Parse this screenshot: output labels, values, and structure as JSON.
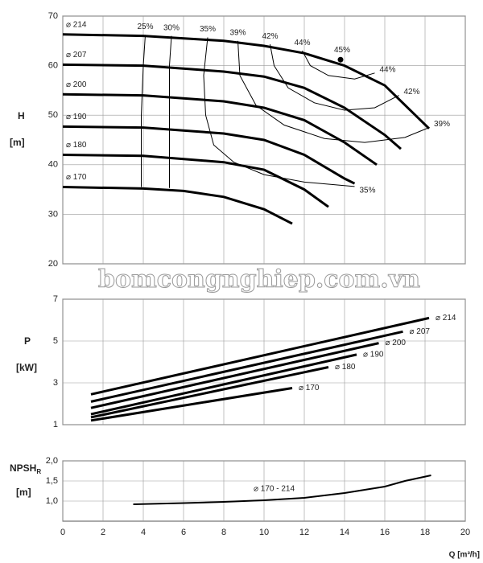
{
  "chart_data": [
    {
      "type": "line",
      "y_label": "H",
      "y_unit": "[m]",
      "xlim": [
        0,
        20
      ],
      "ylim": [
        20,
        70
      ],
      "yticks": [
        20,
        30,
        40,
        50,
        60,
        70
      ],
      "grid": true,
      "watermark": "bomcongnghiep.com.vn",
      "series": [
        {
          "name": "⌀ 214",
          "role": "diameter",
          "color": "#000000",
          "line_width": 3,
          "x": [
            0,
            4,
            8,
            10,
            12,
            14,
            16,
            18.2
          ],
          "values": [
            66.3,
            66,
            65,
            64,
            62.5,
            60,
            56,
            47.3
          ]
        },
        {
          "name": "⌀ 207",
          "role": "diameter",
          "color": "#000000",
          "line_width": 3,
          "x": [
            0,
            4,
            8,
            10,
            12,
            14,
            16,
            16.8
          ],
          "values": [
            60.2,
            60,
            58.8,
            57.8,
            55.5,
            51.5,
            46,
            43.2
          ]
        },
        {
          "name": "⌀ 200",
          "role": "diameter",
          "color": "#000000",
          "line_width": 3,
          "x": [
            0,
            4,
            8,
            10,
            12,
            14,
            15.6
          ],
          "values": [
            54.2,
            54,
            52.8,
            51.5,
            49,
            44.5,
            40
          ]
        },
        {
          "name": "⌀ 190",
          "role": "diameter",
          "color": "#000000",
          "line_width": 3,
          "x": [
            0,
            4,
            8,
            10,
            12,
            14,
            14.5
          ],
          "values": [
            47.7,
            47.5,
            46.3,
            45,
            42,
            37.2,
            36.2
          ]
        },
        {
          "name": "⌀ 180",
          "role": "diameter",
          "color": "#000000",
          "line_width": 3,
          "x": [
            0,
            4,
            8,
            10,
            12,
            13.2
          ],
          "values": [
            42,
            41.8,
            40.5,
            39,
            35,
            31.5
          ]
        },
        {
          "name": "⌀ 170",
          "role": "diameter",
          "color": "#000000",
          "line_width": 3,
          "x": [
            0,
            4,
            6,
            8,
            10,
            11.4
          ],
          "values": [
            35.5,
            35.2,
            34.7,
            33.5,
            31,
            28.1
          ]
        },
        {
          "name": "25%",
          "role": "efficiency",
          "color": "#000000",
          "line_width": 1,
          "x": [
            4.1,
            4,
            3.9,
            3.9,
            3.9
          ],
          "values": [
            66.2,
            60,
            50,
            42,
            35.5
          ]
        },
        {
          "name": "30%",
          "role": "efficiency",
          "color": "#000000",
          "line_width": 1,
          "x": [
            5.4,
            5.3,
            5.3,
            5.3,
            5.3
          ],
          "values": [
            66,
            60,
            50,
            42,
            35.3
          ]
        },
        {
          "name": "35%",
          "role": "efficiency",
          "color": "#000000",
          "line_width": 1,
          "x": [
            7.2,
            7,
            7.1,
            7.5,
            8.5,
            10,
            12,
            14.5
          ],
          "values": [
            65.7,
            58,
            50,
            44,
            40.5,
            38,
            36.5,
            35.6
          ]
        },
        {
          "name": "39%",
          "role": "efficiency",
          "color": "#000000",
          "line_width": 1,
          "x": [
            8.7,
            8.8,
            9.6,
            11,
            13,
            15,
            17,
            18.2
          ],
          "values": [
            65,
            58,
            52,
            48,
            45.3,
            44.5,
            45.5,
            47.5
          ]
        },
        {
          "name": "42%",
          "role": "efficiency",
          "color": "#000000",
          "line_width": 1,
          "x": [
            10.3,
            10.5,
            11.2,
            12.5,
            14,
            15.5,
            16.7
          ],
          "values": [
            64.3,
            60,
            55.5,
            52.5,
            51,
            51.5,
            54
          ]
        },
        {
          "name": "44%",
          "role": "efficiency",
          "color": "#000000",
          "line_width": 1,
          "x": [
            11.9,
            12.3,
            13.2,
            14.5,
            15.5
          ],
          "values": [
            63,
            60,
            58,
            57.3,
            58.5
          ]
        }
      ],
      "annotations": [
        {
          "text": "45%",
          "x": 13.8,
          "y": 61.2
        }
      ]
    },
    {
      "type": "line",
      "y_label": "P",
      "y_unit": "[kW]",
      "xlim": [
        0,
        20
      ],
      "ylim": [
        1,
        7
      ],
      "yticks": [
        1,
        3,
        5,
        7
      ],
      "grid": true,
      "series": [
        {
          "name": "⌀ 214",
          "color": "#000000",
          "line_width": 3,
          "x": [
            1.4,
            18.2
          ],
          "values": [
            2.45,
            6.1
          ]
        },
        {
          "name": "⌀ 207",
          "color": "#000000",
          "line_width": 3,
          "x": [
            1.4,
            16.9
          ],
          "values": [
            2.1,
            5.45
          ]
        },
        {
          "name": "⌀ 200",
          "color": "#000000",
          "line_width": 3,
          "x": [
            1.4,
            15.7
          ],
          "values": [
            1.8,
            4.9
          ]
        },
        {
          "name": "⌀ 190",
          "color": "#000000",
          "line_width": 3,
          "x": [
            1.4,
            14.6
          ],
          "values": [
            1.5,
            4.35
          ]
        },
        {
          "name": "⌀ 180",
          "color": "#000000",
          "line_width": 3,
          "x": [
            1.4,
            13.2
          ],
          "values": [
            1.35,
            3.75
          ]
        },
        {
          "name": "⌀ 170",
          "color": "#000000",
          "line_width": 3,
          "x": [
            1.4,
            11.4
          ],
          "values": [
            1.2,
            2.75
          ]
        }
      ]
    },
    {
      "type": "line",
      "y_label": "NPSH",
      "y_label_sub": "R",
      "y_unit": "[m]",
      "x_label": "Q [m³/h]",
      "xlim": [
        0,
        20
      ],
      "xticks": [
        0,
        2,
        4,
        6,
        8,
        10,
        12,
        14,
        16,
        18,
        20
      ],
      "ylim": [
        0.5,
        2.0
      ],
      "yticks": [
        {
          "value": 1.0,
          "label": "1,0"
        },
        {
          "value": 1.5,
          "label": "1,5"
        },
        {
          "value": 2.0,
          "label": "2,0"
        }
      ],
      "grid": true,
      "series": [
        {
          "name": "⌀ 170 - 214",
          "color": "#000000",
          "line_width": 2,
          "x": [
            3.5,
            6,
            8,
            10,
            12,
            14,
            16,
            17,
            18.3
          ],
          "values": [
            0.92,
            0.95,
            0.98,
            1.02,
            1.08,
            1.2,
            1.36,
            1.5,
            1.64
          ]
        }
      ]
    }
  ]
}
